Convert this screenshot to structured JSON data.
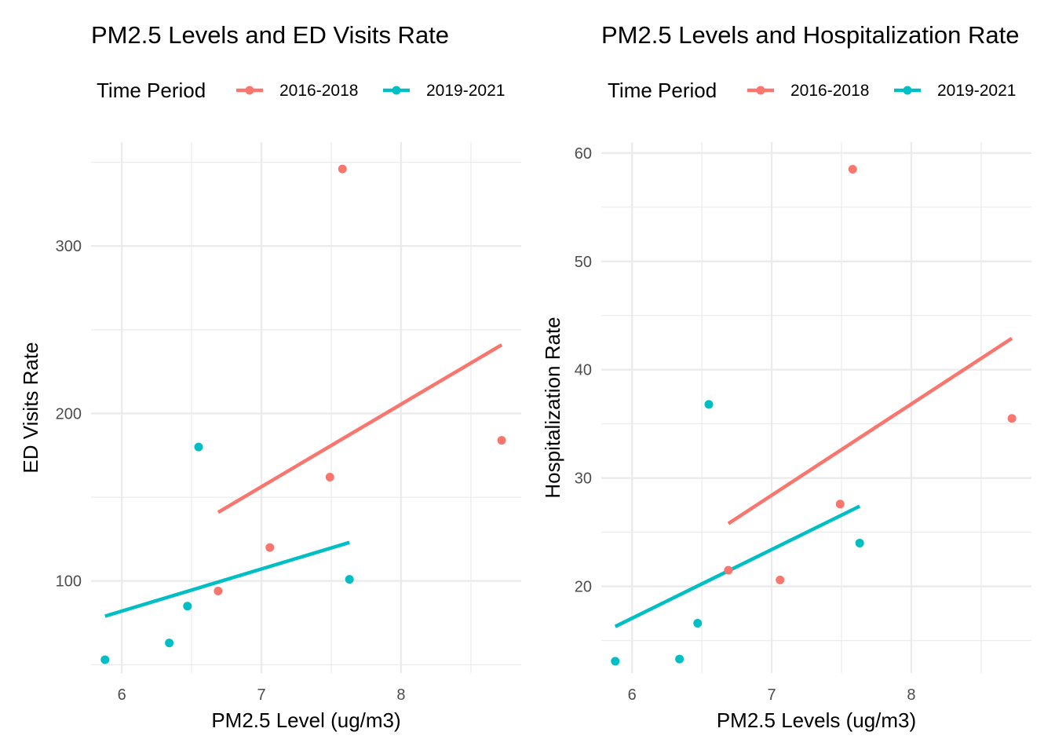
{
  "chart_data": [
    {
      "type": "scatter",
      "title": "PM2.5 Levels and ED Visits Rate",
      "xlabel": "PM2.5 Level (ug/m3)",
      "ylabel": "ED Visits Rate",
      "legend_title": "Time Period",
      "legend_position": "top",
      "grid": true,
      "xlim": [
        5.78,
        8.86
      ],
      "ylim": [
        45,
        362
      ],
      "x_ticks": [
        6,
        7,
        8
      ],
      "x_tick_labels": [
        "6",
        "7",
        "8"
      ],
      "y_ticks": [
        100,
        200,
        300
      ],
      "y_tick_labels": [
        "100",
        "200",
        "300"
      ],
      "series": [
        {
          "name": "2016-2018",
          "color": "#F8766D",
          "points": [
            [
              6.69,
              94
            ],
            [
              7.06,
              120
            ],
            [
              7.49,
              162
            ],
            [
              7.58,
              346
            ],
            [
              8.72,
              184
            ]
          ],
          "fit": [
            [
              6.69,
              141
            ],
            [
              8.72,
              241
            ]
          ]
        },
        {
          "name": "2019-2021",
          "color": "#00BFC4",
          "points": [
            [
              5.88,
              53
            ],
            [
              6.34,
              63
            ],
            [
              6.47,
              85
            ],
            [
              6.55,
              180
            ],
            [
              7.63,
              101
            ]
          ],
          "fit": [
            [
              5.88,
              79
            ],
            [
              7.63,
              123
            ]
          ]
        }
      ]
    },
    {
      "type": "scatter",
      "title": "PM2.5 Levels and Hospitalization Rate",
      "xlabel": "PM2.5 Levels (ug/m3)",
      "ylabel": "Hospitalization Rate",
      "legend_title": "Time Period",
      "legend_position": "top",
      "grid": true,
      "xlim": [
        5.78,
        8.86
      ],
      "ylim": [
        12,
        61
      ],
      "x_ticks": [
        6,
        7,
        8
      ],
      "x_tick_labels": [
        "6",
        "7",
        "8"
      ],
      "y_ticks": [
        20,
        30,
        40,
        50,
        60
      ],
      "y_tick_labels": [
        "20",
        "30",
        "40",
        "50",
        "60"
      ],
      "series": [
        {
          "name": "2016-2018",
          "color": "#F8766D",
          "points": [
            [
              6.69,
              21.5
            ],
            [
              7.06,
              20.6
            ],
            [
              7.49,
              27.6
            ],
            [
              7.58,
              58.5
            ],
            [
              8.72,
              35.5
            ]
          ],
          "fit": [
            [
              6.69,
              25.8
            ],
            [
              8.72,
              42.9
            ]
          ]
        },
        {
          "name": "2019-2021",
          "color": "#00BFC4",
          "points": [
            [
              5.88,
              13.1
            ],
            [
              6.34,
              13.3
            ],
            [
              6.47,
              16.6
            ],
            [
              6.55,
              36.8
            ],
            [
              7.63,
              24.0
            ]
          ],
          "fit": [
            [
              5.88,
              16.3
            ],
            [
              7.63,
              27.4
            ]
          ]
        }
      ]
    }
  ]
}
